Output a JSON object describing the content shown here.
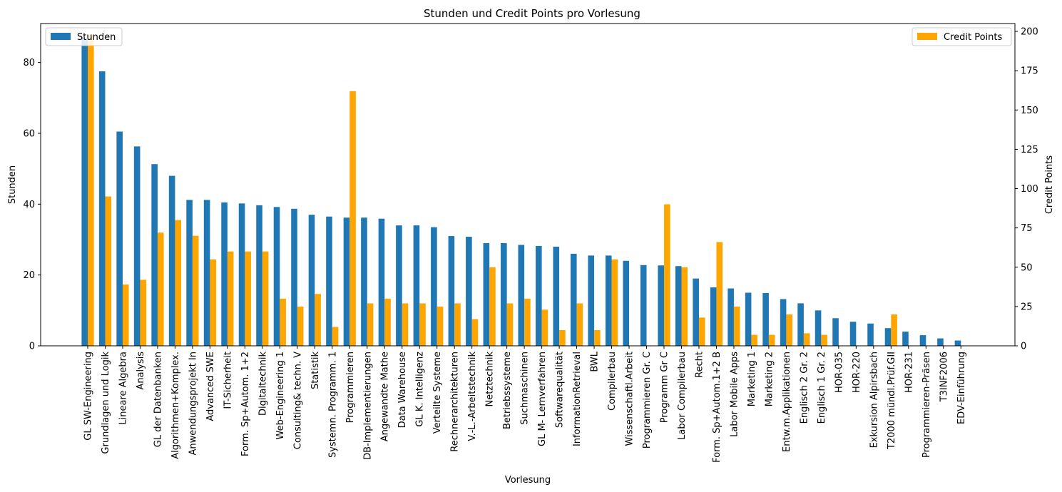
{
  "chart_data": {
    "type": "bar",
    "title": "Stunden und Credit Points pro Vorlesung",
    "xlabel": "Vorlesung",
    "ylabel": "Stunden",
    "ylabel_right": "Credit Points",
    "ylim": [
      0,
      91
    ],
    "ylim_right": [
      0,
      205
    ],
    "yticks": [
      0,
      20,
      40,
      60,
      80
    ],
    "yticks_right": [
      0,
      25,
      50,
      75,
      100,
      125,
      150,
      175,
      200
    ],
    "grid": false,
    "categories": [
      "GL SW-Engineering",
      "Grundlagen und Logik",
      "Lineare Algebra",
      "Analysis",
      "GL der Datenbanken",
      "Algorithmen+Komplex.",
      "Anwendungsprojekt In",
      "Advanced SWE",
      "IT-Sicherheit",
      "Form. Sp+Autom. 1+2",
      "Digitaltechnik",
      "Web-Engineering 1",
      "Consulting& techn. V",
      "Statistik",
      "Systemn. Programm. 1",
      "Programmieren",
      "DB-Implementierungen",
      "Angewandte Mathe",
      "Data Warehouse",
      "GL K. Intelligenz",
      "Verteilte Systeme",
      "Rechnerarchitekturen",
      "V.-L.-Arbeitstechnik",
      "Netztechnik",
      "Betriebssysteme",
      "Suchmaschinen",
      "GL M- Lernverfahren",
      "Softwarequalität",
      "InformationRetrieval",
      "BWL",
      "Compilerbau",
      "Wissenschaftl.Arbeit",
      "Programmieren Gr. C",
      "Programm Gr C",
      "Labor Compilerbau",
      "Recht",
      "Form. Sp+Autom.1+2 B",
      "Labor Mobile Apps",
      "Marketing 1",
      "Marketing 2",
      "Entw.m.Applikationen",
      "Englisch 2 Gr. 2",
      "Englisch 1  Gr. 2",
      "HOR-035",
      "HOR-220",
      "Exkursion Alpirsbach",
      "T2000 mündl.Prüf.GII",
      "HOR-231",
      "Programmieren-Präsen",
      "T3INF2006",
      "EDV-Einführung"
    ],
    "series": [
      {
        "name": "Stunden",
        "axis": "left",
        "color": "#1f77b4",
        "values": [
          87,
          77.5,
          60.5,
          56.3,
          51.3,
          48,
          41.2,
          41.2,
          40.5,
          40.2,
          39.7,
          39.2,
          38.7,
          37,
          36.5,
          36.2,
          36.2,
          35.9,
          34,
          34,
          33.5,
          31,
          30.8,
          29,
          29,
          28.5,
          28.2,
          28,
          26,
          25.5,
          25.5,
          24,
          22.8,
          22.7,
          22.5,
          19,
          16.5,
          16.2,
          15,
          14.9,
          13.2,
          12,
          10,
          7.8,
          6.8,
          6.3,
          5,
          4,
          3,
          2.1,
          1.5
        ]
      },
      {
        "name": "Credit Points",
        "axis": "right",
        "color": "#ffa500",
        "values": [
          198,
          95,
          39,
          42,
          72,
          80,
          70,
          55,
          60,
          60,
          60,
          30,
          25,
          33,
          12,
          162,
          27,
          30,
          27,
          27,
          25,
          27,
          17,
          50,
          27,
          30,
          23,
          10,
          27,
          10,
          55,
          0,
          0,
          90,
          50,
          18,
          66,
          25,
          7,
          7,
          20,
          8,
          7,
          0,
          0,
          0,
          20,
          0,
          0,
          0,
          0
        ]
      }
    ],
    "legend": [
      {
        "label": "Stunden",
        "placement": "top-left"
      },
      {
        "label": "Credit Points",
        "placement": "top-right"
      }
    ]
  }
}
